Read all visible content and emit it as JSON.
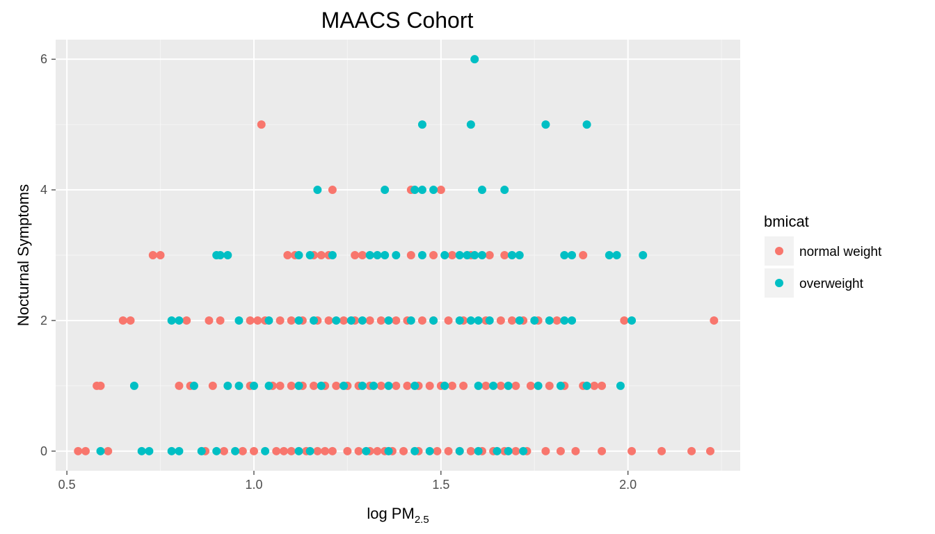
{
  "chart_data": {
    "type": "scatter",
    "title": "MAACS Cohort",
    "xlabel": {
      "main": "log PM",
      "subscript": "2.5"
    },
    "ylabel": "Nocturnal Symptoms",
    "xlim": [
      0.47,
      2.3
    ],
    "ylim": [
      -0.3,
      6.3
    ],
    "x_ticks": [
      0.5,
      1.0,
      1.5,
      2.0
    ],
    "x_tick_labels": [
      "0.5",
      "1.0",
      "1.5",
      "2.0"
    ],
    "y_ticks": [
      0,
      2,
      4,
      6
    ],
    "y_tick_labels": [
      "0",
      "2",
      "4",
      "6"
    ],
    "grid": true,
    "legend": {
      "title": "bmicat",
      "position": "right",
      "entries": [
        {
          "name": "normal weight",
          "color": "#F8766D"
        },
        {
          "name": "overweight",
          "color": "#00BFC4"
        }
      ]
    },
    "series": [
      {
        "name": "normal weight",
        "color": "#F8766D",
        "points": [
          [
            0.53,
            0
          ],
          [
            0.55,
            0
          ],
          [
            0.61,
            0
          ],
          [
            0.87,
            0
          ],
          [
            0.92,
            0
          ],
          [
            0.97,
            0
          ],
          [
            1.0,
            0
          ],
          [
            1.06,
            0
          ],
          [
            1.08,
            0
          ],
          [
            1.1,
            0
          ],
          [
            1.14,
            0
          ],
          [
            1.17,
            0
          ],
          [
            1.19,
            0
          ],
          [
            1.21,
            0
          ],
          [
            1.25,
            0
          ],
          [
            1.28,
            0
          ],
          [
            1.31,
            0
          ],
          [
            1.33,
            0
          ],
          [
            1.35,
            0
          ],
          [
            1.37,
            0
          ],
          [
            1.4,
            0
          ],
          [
            1.44,
            0
          ],
          [
            1.49,
            0
          ],
          [
            1.52,
            0
          ],
          [
            1.55,
            0
          ],
          [
            1.58,
            0
          ],
          [
            1.61,
            0
          ],
          [
            1.64,
            0
          ],
          [
            1.67,
            0
          ],
          [
            1.7,
            0
          ],
          [
            1.73,
            0
          ],
          [
            1.78,
            0
          ],
          [
            1.82,
            0
          ],
          [
            1.86,
            0
          ],
          [
            1.93,
            0
          ],
          [
            2.01,
            0
          ],
          [
            2.09,
            0
          ],
          [
            2.17,
            0
          ],
          [
            2.22,
            0
          ],
          [
            0.58,
            1
          ],
          [
            0.59,
            1
          ],
          [
            0.8,
            1
          ],
          [
            0.83,
            1
          ],
          [
            0.89,
            1
          ],
          [
            0.99,
            1
          ],
          [
            1.05,
            1
          ],
          [
            1.07,
            1
          ],
          [
            1.1,
            1
          ],
          [
            1.13,
            1
          ],
          [
            1.16,
            1
          ],
          [
            1.19,
            1
          ],
          [
            1.22,
            1
          ],
          [
            1.25,
            1
          ],
          [
            1.28,
            1
          ],
          [
            1.31,
            1
          ],
          [
            1.34,
            1
          ],
          [
            1.38,
            1
          ],
          [
            1.41,
            1
          ],
          [
            1.44,
            1
          ],
          [
            1.47,
            1
          ],
          [
            1.5,
            1
          ],
          [
            1.53,
            1
          ],
          [
            1.56,
            1
          ],
          [
            1.62,
            1
          ],
          [
            1.66,
            1
          ],
          [
            1.7,
            1
          ],
          [
            1.74,
            1
          ],
          [
            1.79,
            1
          ],
          [
            1.83,
            1
          ],
          [
            1.88,
            1
          ],
          [
            1.91,
            1
          ],
          [
            1.93,
            1
          ],
          [
            0.65,
            2
          ],
          [
            0.67,
            2
          ],
          [
            0.82,
            2
          ],
          [
            0.88,
            2
          ],
          [
            0.91,
            2
          ],
          [
            0.99,
            2
          ],
          [
            1.01,
            2
          ],
          [
            1.03,
            2
          ],
          [
            1.07,
            2
          ],
          [
            1.1,
            2
          ],
          [
            1.13,
            2
          ],
          [
            1.17,
            2
          ],
          [
            1.2,
            2
          ],
          [
            1.24,
            2
          ],
          [
            1.27,
            2
          ],
          [
            1.31,
            2
          ],
          [
            1.34,
            2
          ],
          [
            1.38,
            2
          ],
          [
            1.41,
            2
          ],
          [
            1.45,
            2
          ],
          [
            1.48,
            2
          ],
          [
            1.52,
            2
          ],
          [
            1.56,
            2
          ],
          [
            1.62,
            2
          ],
          [
            1.66,
            2
          ],
          [
            1.69,
            2
          ],
          [
            1.72,
            2
          ],
          [
            1.76,
            2
          ],
          [
            1.81,
            2
          ],
          [
            1.99,
            2
          ],
          [
            2.23,
            2
          ],
          [
            0.73,
            3
          ],
          [
            0.75,
            3
          ],
          [
            1.09,
            3
          ],
          [
            1.11,
            3
          ],
          [
            1.16,
            3
          ],
          [
            1.18,
            3
          ],
          [
            1.2,
            3
          ],
          [
            1.27,
            3
          ],
          [
            1.29,
            3
          ],
          [
            1.42,
            3
          ],
          [
            1.48,
            3
          ],
          [
            1.53,
            3
          ],
          [
            1.58,
            3
          ],
          [
            1.63,
            3
          ],
          [
            1.67,
            3
          ],
          [
            1.88,
            3
          ],
          [
            1.02,
            5
          ],
          [
            1.21,
            4
          ],
          [
            1.42,
            4
          ],
          [
            1.5,
            4
          ]
        ]
      },
      {
        "name": "overweight",
        "color": "#00BFC4",
        "points": [
          [
            0.59,
            0
          ],
          [
            0.7,
            0
          ],
          [
            0.72,
            0
          ],
          [
            0.78,
            0
          ],
          [
            0.8,
            0
          ],
          [
            0.86,
            0
          ],
          [
            0.9,
            0
          ],
          [
            0.95,
            0
          ],
          [
            1.03,
            0
          ],
          [
            1.12,
            0
          ],
          [
            1.15,
            0
          ],
          [
            1.3,
            0
          ],
          [
            1.36,
            0
          ],
          [
            1.43,
            0
          ],
          [
            1.47,
            0
          ],
          [
            1.55,
            0
          ],
          [
            1.6,
            0
          ],
          [
            1.65,
            0
          ],
          [
            1.68,
            0
          ],
          [
            1.72,
            0
          ],
          [
            0.68,
            1
          ],
          [
            0.84,
            1
          ],
          [
            0.93,
            1
          ],
          [
            0.96,
            1
          ],
          [
            1.0,
            1
          ],
          [
            1.04,
            1
          ],
          [
            1.12,
            1
          ],
          [
            1.18,
            1
          ],
          [
            1.24,
            1
          ],
          [
            1.29,
            1
          ],
          [
            1.32,
            1
          ],
          [
            1.36,
            1
          ],
          [
            1.43,
            1
          ],
          [
            1.51,
            1
          ],
          [
            1.6,
            1
          ],
          [
            1.64,
            1
          ],
          [
            1.68,
            1
          ],
          [
            1.76,
            1
          ],
          [
            1.82,
            1
          ],
          [
            1.89,
            1
          ],
          [
            1.98,
            1
          ],
          [
            0.78,
            2
          ],
          [
            0.8,
            2
          ],
          [
            0.96,
            2
          ],
          [
            1.04,
            2
          ],
          [
            1.12,
            2
          ],
          [
            1.16,
            2
          ],
          [
            1.22,
            2
          ],
          [
            1.26,
            2
          ],
          [
            1.29,
            2
          ],
          [
            1.36,
            2
          ],
          [
            1.42,
            2
          ],
          [
            1.48,
            2
          ],
          [
            1.55,
            2
          ],
          [
            1.58,
            2
          ],
          [
            1.6,
            2
          ],
          [
            1.63,
            2
          ],
          [
            1.71,
            2
          ],
          [
            1.75,
            2
          ],
          [
            1.79,
            2
          ],
          [
            1.83,
            2
          ],
          [
            1.85,
            2
          ],
          [
            2.01,
            2
          ],
          [
            0.9,
            3
          ],
          [
            0.91,
            3
          ],
          [
            0.93,
            3
          ],
          [
            1.12,
            3
          ],
          [
            1.15,
            3
          ],
          [
            1.21,
            3
          ],
          [
            1.31,
            3
          ],
          [
            1.33,
            3
          ],
          [
            1.35,
            3
          ],
          [
            1.38,
            3
          ],
          [
            1.45,
            3
          ],
          [
            1.51,
            3
          ],
          [
            1.55,
            3
          ],
          [
            1.57,
            3
          ],
          [
            1.59,
            3
          ],
          [
            1.61,
            3
          ],
          [
            1.69,
            3
          ],
          [
            1.71,
            3
          ],
          [
            1.83,
            3
          ],
          [
            1.85,
            3
          ],
          [
            1.95,
            3
          ],
          [
            1.97,
            3
          ],
          [
            2.04,
            3
          ],
          [
            1.17,
            4
          ],
          [
            1.35,
            4
          ],
          [
            1.43,
            4
          ],
          [
            1.45,
            4
          ],
          [
            1.48,
            4
          ],
          [
            1.61,
            4
          ],
          [
            1.67,
            4
          ],
          [
            1.45,
            5
          ],
          [
            1.58,
            5
          ],
          [
            1.78,
            5
          ],
          [
            1.89,
            5
          ],
          [
            1.59,
            6
          ]
        ]
      }
    ]
  }
}
